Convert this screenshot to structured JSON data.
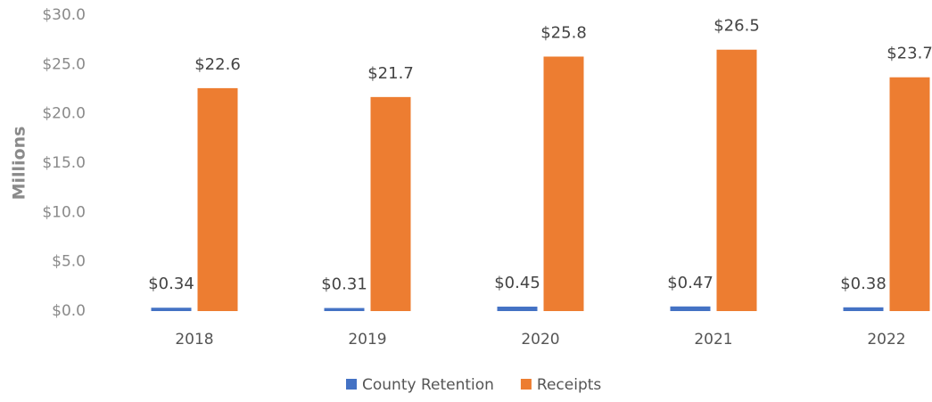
{
  "chart_data": {
    "type": "bar",
    "y_label": "Millions",
    "categories": [
      "2018",
      "2019",
      "2020",
      "2021",
      "2022"
    ],
    "series": [
      {
        "name": "County Retention",
        "color": "#4472c4",
        "values": [
          0.34,
          0.31,
          0.45,
          0.47,
          0.38
        ],
        "value_labels": [
          "$0.34",
          "$0.31",
          "$0.45",
          "$0.47",
          "$0.38"
        ]
      },
      {
        "name": "Receipts",
        "color": "#ed7d31",
        "values": [
          22.6,
          21.7,
          25.8,
          26.5,
          23.7
        ],
        "value_labels": [
          "$22.6",
          "$21.7",
          "$25.8",
          "$26.5",
          "$23.7"
        ]
      }
    ],
    "ylim": [
      0,
      30
    ],
    "yticks": [
      {
        "value": 0,
        "label": "$0.0"
      },
      {
        "value": 5,
        "label": "$5.0"
      },
      {
        "value": 10,
        "label": "$10.0"
      },
      {
        "value": 15,
        "label": "$15.0"
      },
      {
        "value": 20,
        "label": "$20.0"
      },
      {
        "value": 25,
        "label": "$25.0"
      },
      {
        "value": 30,
        "label": "$30.0"
      }
    ],
    "grid": false,
    "legend": "bottom"
  }
}
